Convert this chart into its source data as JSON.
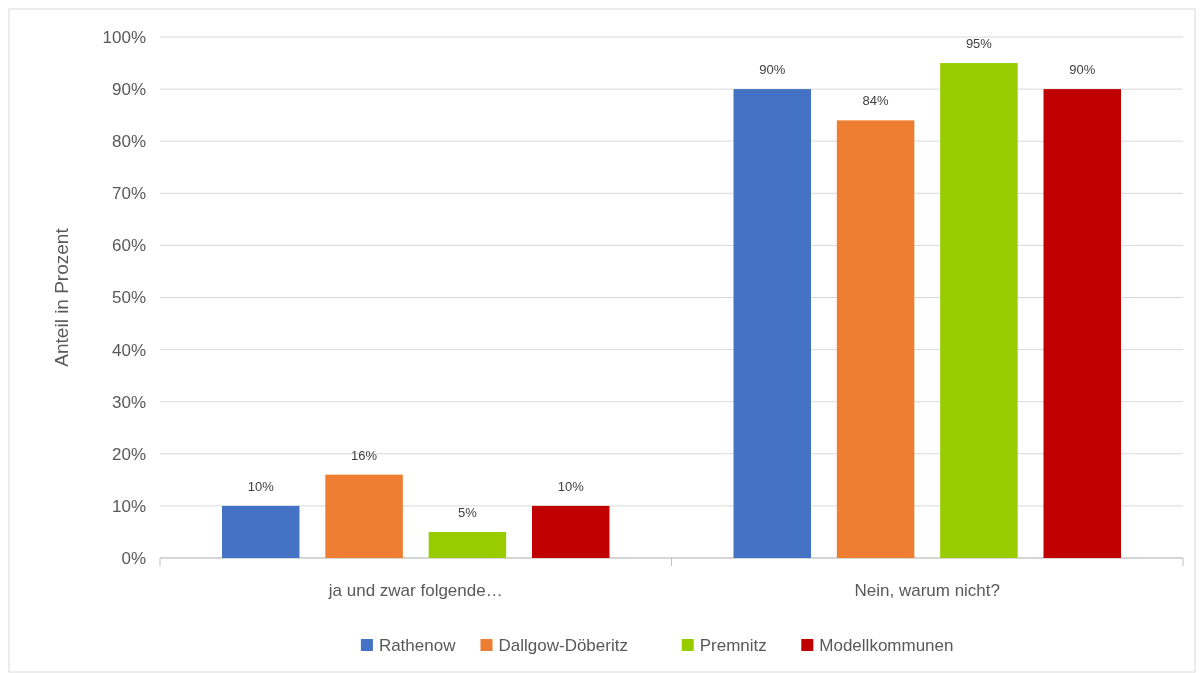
{
  "chart_data": {
    "type": "bar",
    "ylabel": "Anteil in Prozent",
    "categories": [
      "ja und zwar folgende…",
      "Nein, warum nicht?"
    ],
    "series": [
      {
        "name": "Rathenow",
        "color": "#4472c4",
        "values": [
          10,
          90
        ],
        "value_labels": [
          "10%",
          "90%"
        ]
      },
      {
        "name": "Dallgow-Döberitz",
        "color": "#ed7d31",
        "values": [
          16,
          84
        ],
        "value_labels": [
          "16%",
          "84%"
        ]
      },
      {
        "name": "Premnitz",
        "color": "#99cc00",
        "values": [
          5,
          95
        ],
        "value_labels": [
          "5%",
          "95%"
        ]
      },
      {
        "name": "Modellkommunen",
        "color": "#c00000",
        "values": [
          10,
          90
        ],
        "value_labels": [
          "10%",
          "90%"
        ]
      }
    ],
    "ylim": [
      0,
      100
    ],
    "yticks": [
      {
        "value": 0,
        "label": "0%"
      },
      {
        "value": 10,
        "label": "10%"
      },
      {
        "value": 20,
        "label": "20%"
      },
      {
        "value": 30,
        "label": "30%"
      },
      {
        "value": 40,
        "label": "40%"
      },
      {
        "value": 50,
        "label": "50%"
      },
      {
        "value": 60,
        "label": "60%"
      },
      {
        "value": 70,
        "label": "70%"
      },
      {
        "value": 80,
        "label": "80%"
      },
      {
        "value": 90,
        "label": "90%"
      },
      {
        "value": 100,
        "label": "100%"
      }
    ],
    "grid": "y",
    "legend": "bottom"
  }
}
